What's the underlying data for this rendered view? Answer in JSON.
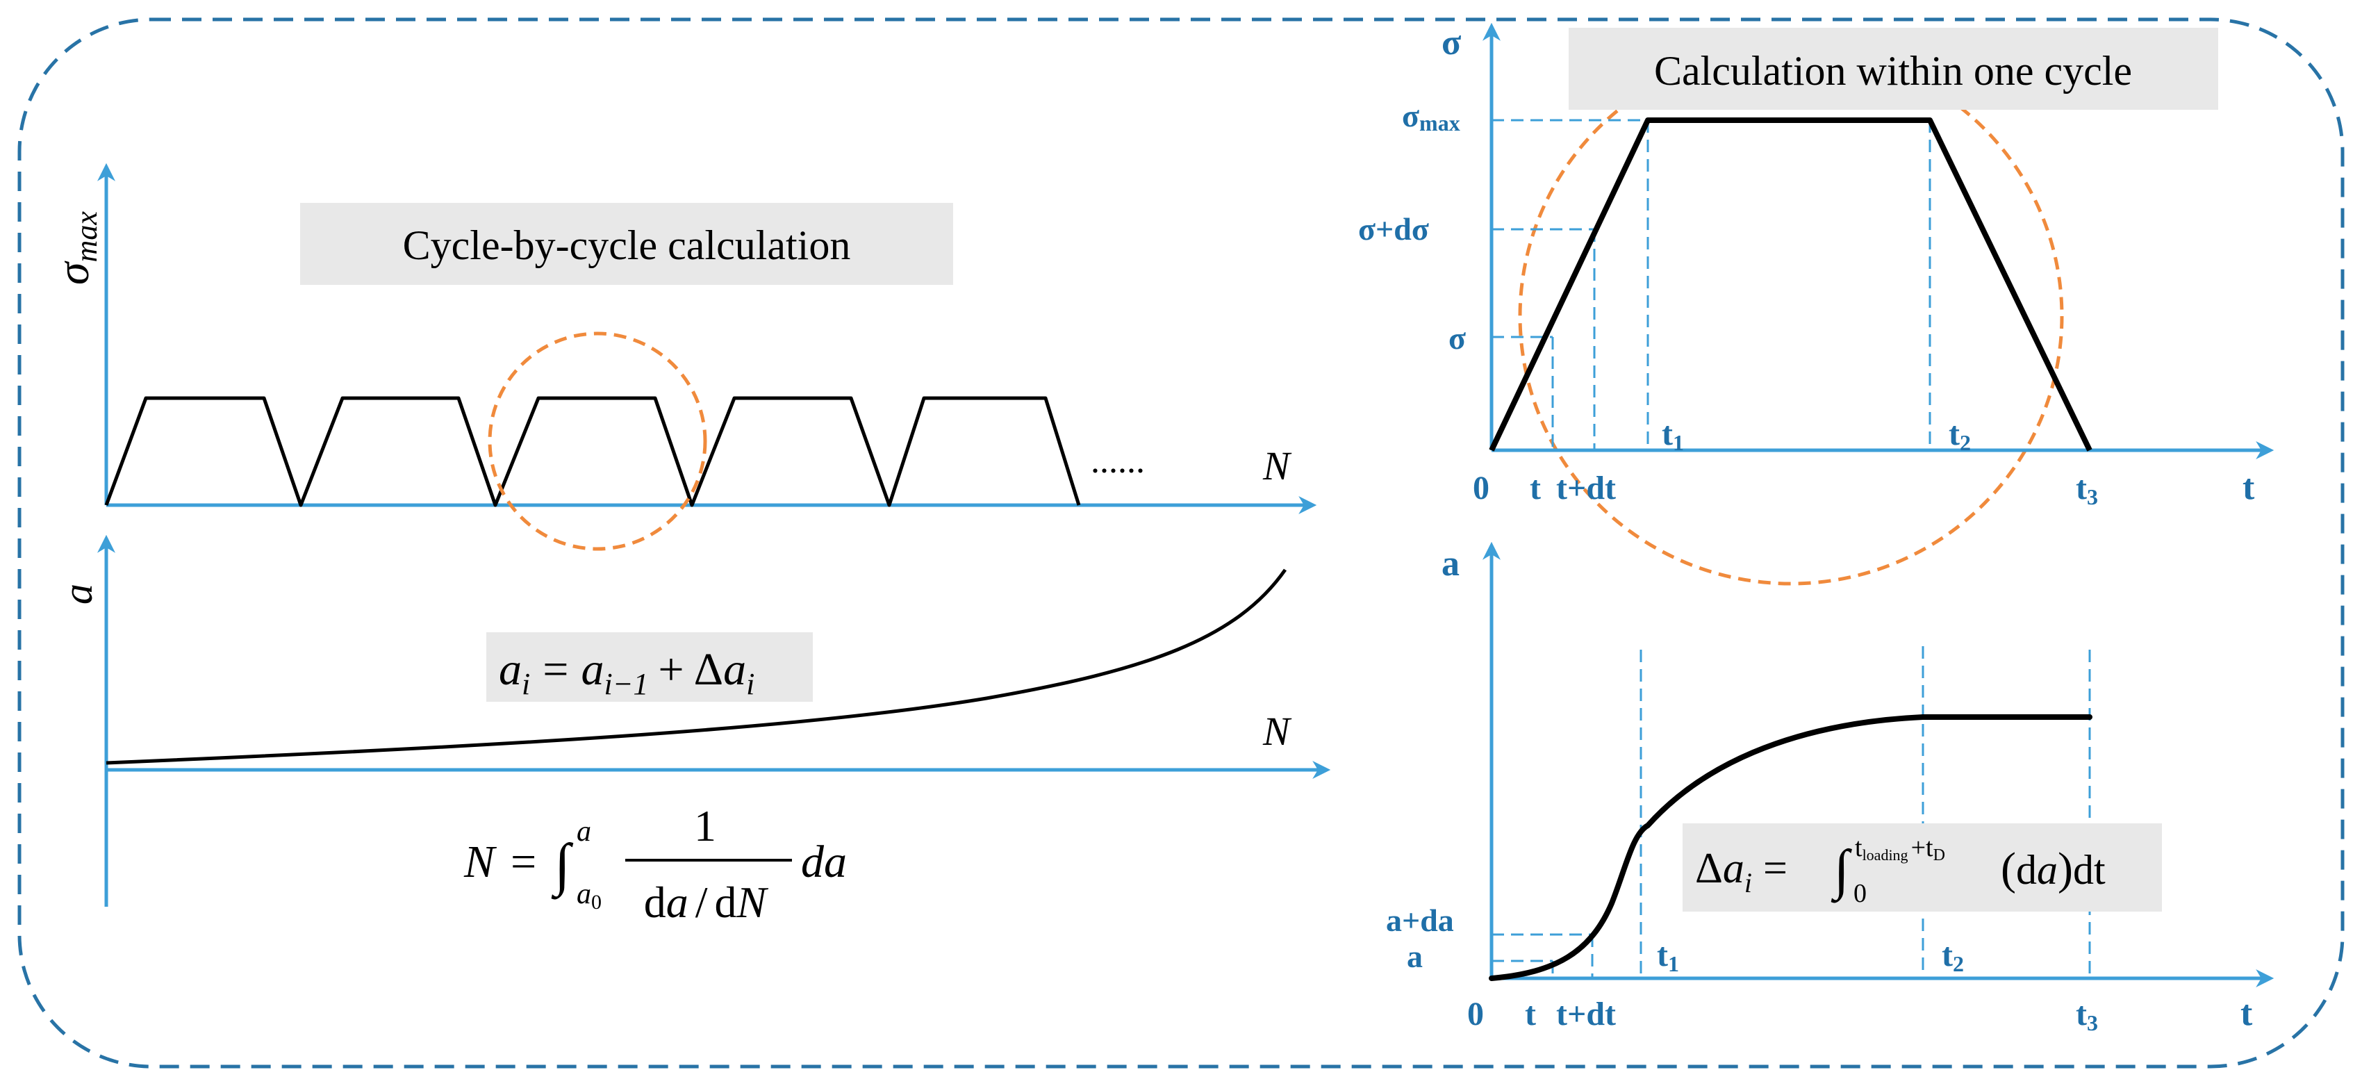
{
  "colors": {
    "axis": "#3d9fd8",
    "frame": "#2873a6",
    "label_blue": "#1f6fa8",
    "curve": "#000000",
    "highlight_circle": "#f08a3c",
    "label_box": "#e8e8e8"
  },
  "left_panel": {
    "title": "Cycle-by-cycle calculation",
    "top_axis": {
      "y_label_symbol": "σ",
      "y_label_sub": "max",
      "x_label": "N",
      "ellipsis": "......"
    },
    "bottom_axis": {
      "y_label": "a",
      "x_label": "N"
    },
    "recurrence": {
      "a": "a",
      "i": "i",
      "equals": "=",
      "i_minus_1": "i−1",
      "plus": "+",
      "delta": "Δ"
    },
    "integral": {
      "N": "N",
      "equals": "=",
      "integral_sign": "∫",
      "upper": "a",
      "lower": "a",
      "lower_sub": "0",
      "one": "1",
      "da": "da",
      "slash": "/",
      "dN": "dN",
      "d": "d"
    }
  },
  "right_top_panel": {
    "title": "Calculation within one cycle",
    "y_axis_label": "σ",
    "y_ticks": {
      "sigma_max": "σ",
      "sigma_max_sub": "max",
      "sigma_plus_dsigma": "σ+dσ",
      "sigma": "σ"
    },
    "x_ticks": {
      "zero": "0",
      "t": "t",
      "t_plus_dt": "t+dt",
      "t1": "t",
      "t1_sub": "1",
      "t2": "t",
      "t2_sub": "2",
      "t3": "t",
      "t3_sub": "3"
    },
    "x_axis_label": "t"
  },
  "right_bottom_panel": {
    "y_axis_label": "a",
    "y_ticks": {
      "a_plus_da": "a+da",
      "a": "a"
    },
    "x_ticks": {
      "zero": "0",
      "t": "t",
      "t_plus_dt": "t+dt",
      "t1": "t",
      "t1_sub": "1",
      "t2": "t",
      "t2_sub": "2",
      "t3": "t",
      "t3_sub": "3"
    },
    "x_axis_label": "t",
    "formula": {
      "delta": "Δ",
      "a": "a",
      "i": "i",
      "equals": "=",
      "integral_sign": "∫",
      "lower": "0",
      "upper_t": "t",
      "upper_loading": "loading",
      "upper_plus": "+t",
      "upper_D": "D",
      "lparen": "(",
      "d": "d",
      "rparen": ")",
      "dt": "dt"
    }
  }
}
